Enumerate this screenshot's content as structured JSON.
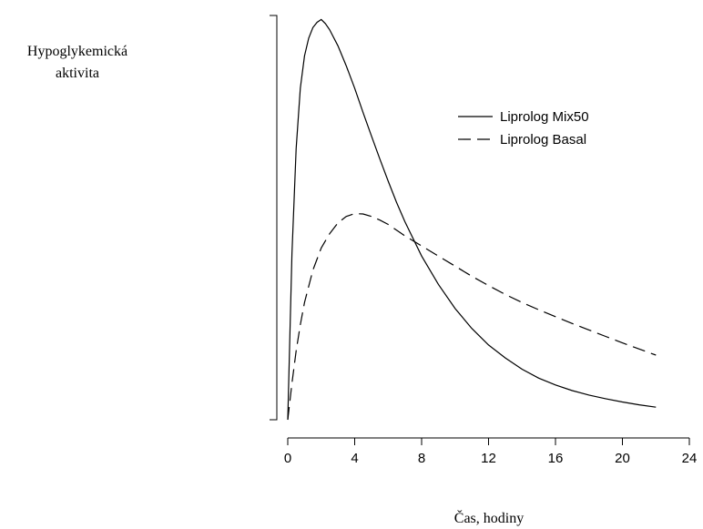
{
  "chart_data": {
    "type": "line",
    "title": "",
    "ylabel": [
      "Hypoglykemická",
      "aktivita"
    ],
    "xlabel": "Čas, hodiny",
    "xlim": [
      0,
      24
    ],
    "ylim": [
      0,
      1
    ],
    "xticks": [
      0,
      4,
      8,
      12,
      16,
      20,
      24
    ],
    "grid": false,
    "legend_position": "top-right",
    "series": [
      {
        "name": "Liprolog Mix50",
        "style": "solid",
        "color": "#000000",
        "x": [
          0,
          0.25,
          0.5,
          0.75,
          1,
          1.25,
          1.5,
          1.75,
          2,
          2.25,
          2.5,
          3,
          3.5,
          4,
          4.5,
          5,
          5.5,
          6,
          6.5,
          7,
          8,
          9,
          10,
          11,
          12,
          13,
          14,
          15,
          16,
          17,
          18,
          19,
          20,
          21,
          22
        ],
        "y": [
          0.0,
          0.41,
          0.67,
          0.82,
          0.9,
          0.944,
          0.97,
          0.983,
          0.99,
          0.98,
          0.965,
          0.925,
          0.875,
          0.82,
          0.76,
          0.702,
          0.645,
          0.59,
          0.538,
          0.49,
          0.405,
          0.335,
          0.275,
          0.226,
          0.185,
          0.153,
          0.125,
          0.103,
          0.086,
          0.072,
          0.061,
          0.052,
          0.044,
          0.037,
          0.031
        ]
      },
      {
        "name": "Liprolog Basal",
        "style": "dashed",
        "color": "#000000",
        "x": [
          0,
          0.25,
          0.5,
          0.75,
          1,
          1.5,
          2,
          2.5,
          3,
          3.5,
          4,
          4.5,
          5,
          5.5,
          6,
          7,
          8,
          9,
          10,
          11,
          12,
          13,
          14,
          15,
          16,
          17,
          18,
          19,
          20,
          21,
          22
        ],
        "y": [
          0.0,
          0.09,
          0.17,
          0.235,
          0.29,
          0.37,
          0.425,
          0.46,
          0.487,
          0.503,
          0.51,
          0.509,
          0.503,
          0.494,
          0.483,
          0.455,
          0.43,
          0.405,
          0.38,
          0.355,
          0.332,
          0.31,
          0.29,
          0.272,
          0.255,
          0.238,
          0.222,
          0.206,
          0.19,
          0.175,
          0.16
        ]
      }
    ]
  }
}
